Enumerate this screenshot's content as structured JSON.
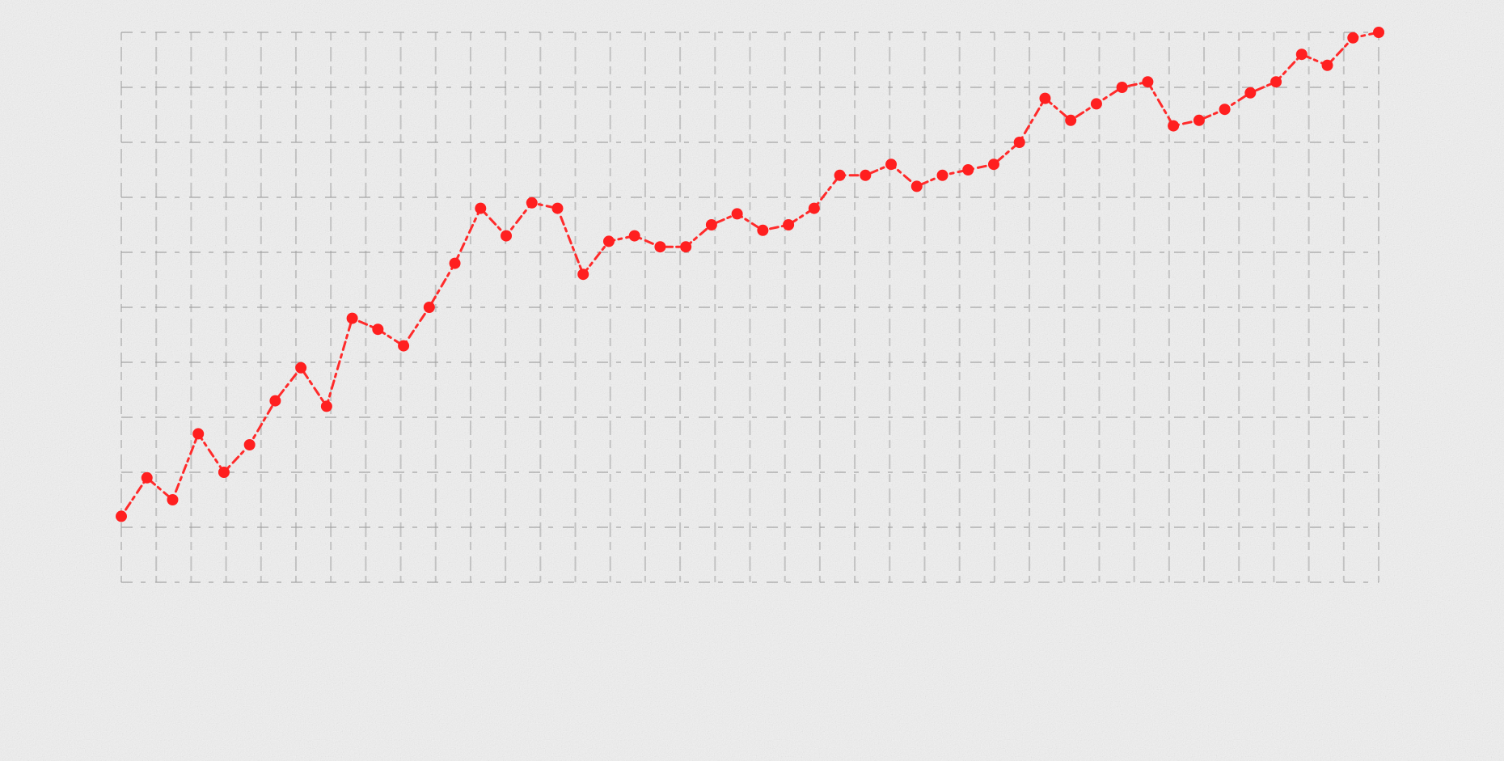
{
  "chart_data": {
    "type": "line",
    "title": "",
    "xlabel": "",
    "ylabel": "",
    "grid": true,
    "legend": "none",
    "xlim": [
      0,
      49
    ],
    "ylim": [
      0,
      10
    ],
    "series": [
      {
        "color": "#ff2020",
        "x": [
          0,
          1,
          2,
          3,
          4,
          5,
          6,
          7,
          8,
          9,
          10,
          11,
          12,
          13,
          14,
          15,
          16,
          17,
          18,
          19,
          20,
          21,
          22,
          23,
          24,
          25,
          26,
          27,
          28,
          29,
          30,
          31,
          32,
          33,
          34,
          35,
          36,
          37,
          38,
          39,
          40,
          41,
          42,
          43,
          44,
          45,
          46,
          47,
          48,
          49
        ],
        "y": [
          1.2,
          1.9,
          1.5,
          2.7,
          2.0,
          2.5,
          3.3,
          3.9,
          3.2,
          4.8,
          4.6,
          4.3,
          5.0,
          5.8,
          6.8,
          6.3,
          6.9,
          6.8,
          5.6,
          6.2,
          6.3,
          6.1,
          6.1,
          6.5,
          6.7,
          6.4,
          6.5,
          6.8,
          7.4,
          7.4,
          7.6,
          7.2,
          7.4,
          7.5,
          7.6,
          8.0,
          8.8,
          8.4,
          8.7,
          9.0,
          9.1,
          8.3,
          8.4,
          8.6,
          8.9,
          9.1,
          9.6,
          9.4,
          9.9,
          10.0
        ]
      }
    ]
  }
}
